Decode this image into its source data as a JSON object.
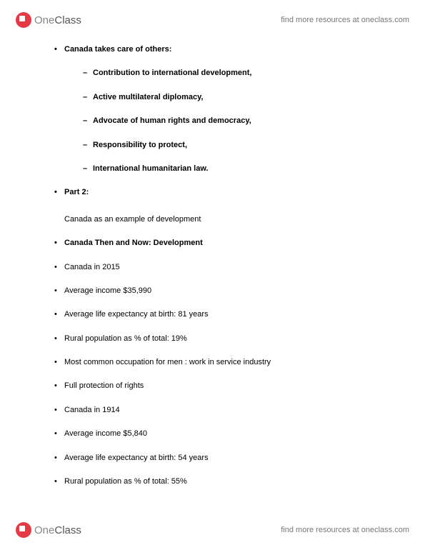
{
  "brand": {
    "one": "One",
    "class": "Class"
  },
  "resource_link": "find more resources at oneclass.com",
  "doc": {
    "intro_heading": "Canada takes care of others:",
    "cares_list": [
      "Contribution to international development,",
      "Active multilateral diplomacy,",
      "Advocate of human rights and democracy,",
      "Responsibility to protect,",
      "International humanitarian law."
    ],
    "part2_label": "Part 2:",
    "part2_subtitle": "Canada as an example of development",
    "then_now_heading": "Canada Then and Now: Development",
    "canada_2015": {
      "heading": "Canada in 2015",
      "avg_income": "Average income $35,990",
      "life_expectancy": "Average life expectancy at birth: 81 years",
      "rural_pct": "Rural population as % of total: 19%",
      "occupation": "Most common occupation for men : work in service industry",
      "rights": "Full protection of rights"
    },
    "canada_1914": {
      "heading": "Canada in 1914",
      "avg_income": "Average income $5,840",
      "life_expectancy": "Average life expectancy at birth: 54 years",
      "rural_pct": "Rural population as % of total: 55%"
    }
  },
  "colors": {
    "brand_red": "#e63946",
    "text_gray": "#777777",
    "body_text": "#000000",
    "background": "#ffffff"
  },
  "typography": {
    "body_fontsize_pt": 8,
    "logo_fontsize_pt": 11,
    "link_fontsize_pt": 8
  }
}
